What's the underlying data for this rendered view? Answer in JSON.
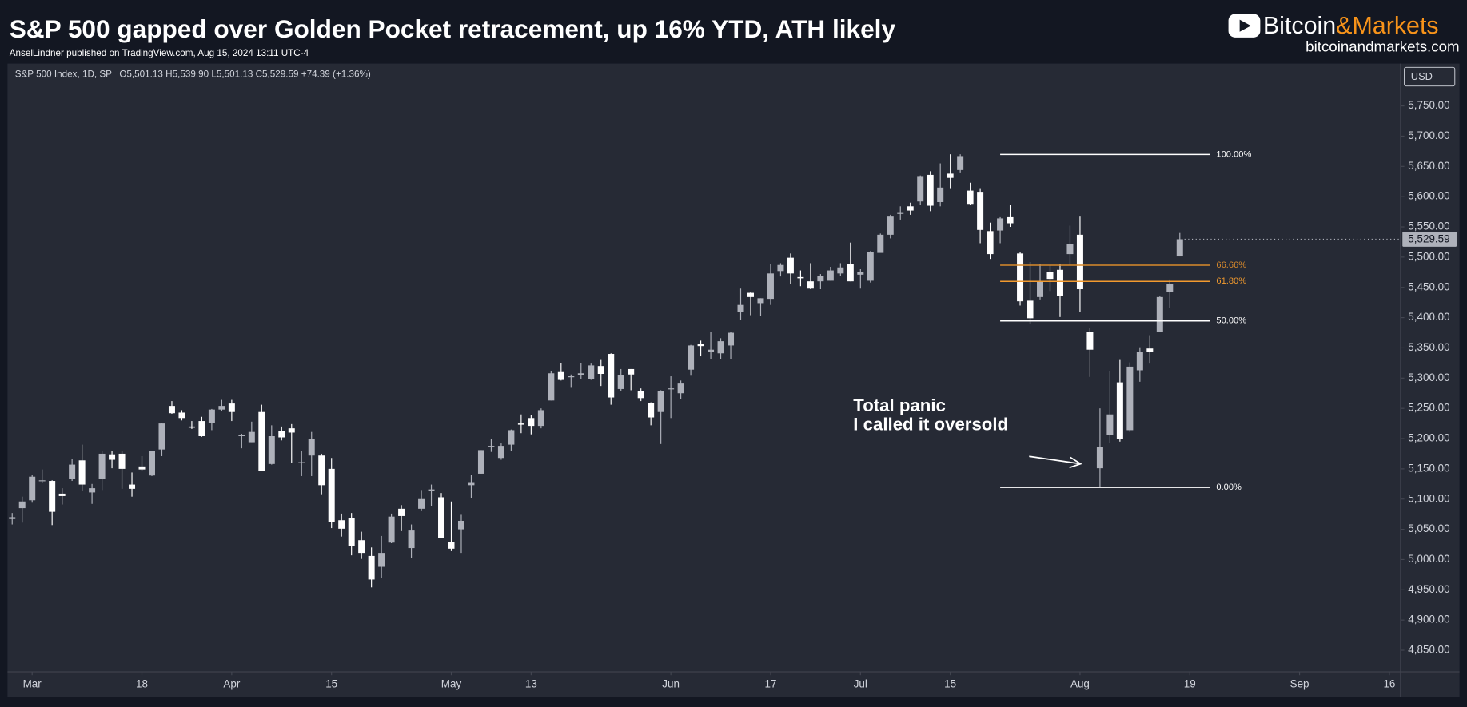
{
  "header": {
    "title": "S&P 500 gapped over Golden Pocket retracement, up 16% YTD, ATH likely",
    "subtitle": "AnselLindner published on TradingView.com, Aug 15, 2024 13:11 UTC-4",
    "logo": [
      "Bitcoin",
      "&Markets"
    ],
    "website": "bitcoinandmarkets.com"
  },
  "chart_data": {
    "type": "candlestick",
    "symbol": "S&P 500 Index, 1D, SP",
    "ohlc_legend": "O5,501.13 H5,539.90 L5,501.13 C5,529.59 +74.39 (+1.36%)",
    "currency": "USD",
    "up_color": "#aeb1ba",
    "down_color": "#ffffff",
    "candles": [
      [
        5067,
        5077,
        5058,
        5070
      ],
      [
        5085,
        5104,
        5061,
        5096
      ],
      [
        5098,
        5140,
        5094,
        5137
      ],
      [
        5131,
        5149,
        5127,
        5131
      ],
      [
        5130,
        5131,
        5057,
        5079
      ],
      [
        5109,
        5118,
        5091,
        5105
      ],
      [
        5133,
        5166,
        5130,
        5157
      ],
      [
        5164,
        5190,
        5114,
        5124
      ],
      [
        5111,
        5125,
        5092,
        5118
      ],
      [
        5134,
        5180,
        5115,
        5175
      ],
      [
        5174,
        5179,
        5151,
        5165
      ],
      [
        5175,
        5179,
        5117,
        5150
      ],
      [
        5124,
        5144,
        5104,
        5117
      ],
      [
        5154,
        5171,
        5146,
        5149
      ],
      [
        5139,
        5180,
        5138,
        5179
      ],
      [
        5182,
        5225,
        5171,
        5225
      ],
      [
        5254,
        5262,
        5241,
        5242
      ],
      [
        5243,
        5247,
        5230,
        5234
      ],
      [
        5220,
        5229,
        5216,
        5218
      ],
      [
        5229,
        5236,
        5203,
        5204
      ],
      [
        5226,
        5249,
        5214,
        5248
      ],
      [
        5248,
        5264,
        5246,
        5254
      ],
      [
        5258,
        5264,
        5229,
        5244
      ],
      [
        5204,
        5208,
        5184,
        5206
      ],
      [
        5194,
        5228,
        5194,
        5211
      ],
      [
        5244,
        5256,
        5146,
        5147
      ],
      [
        5158,
        5222,
        5157,
        5204
      ],
      [
        5212,
        5220,
        5197,
        5202
      ],
      [
        5217,
        5224,
        5160,
        5210
      ],
      [
        5160,
        5179,
        5138,
        5161
      ],
      [
        5172,
        5211,
        5138,
        5199
      ],
      [
        5172,
        5175,
        5108,
        5123
      ],
      [
        5150,
        5168,
        5052,
        5062
      ],
      [
        5065,
        5076,
        5038,
        5051
      ],
      [
        5068,
        5077,
        5007,
        5022
      ],
      [
        5032,
        5046,
        5001,
        5011
      ],
      [
        5006,
        5020,
        4954,
        4967
      ],
      [
        4988,
        5039,
        4970,
        5011
      ],
      [
        5028,
        5076,
        5027,
        5071
      ],
      [
        5084,
        5090,
        5047,
        5072
      ],
      [
        5019,
        5058,
        5002,
        5048
      ],
      [
        5084,
        5115,
        5080,
        5100
      ],
      [
        5114,
        5124,
        5088,
        5116
      ],
      [
        5103,
        5110,
        5035,
        5036
      ],
      [
        5029,
        5096,
        5014,
        5018
      ],
      [
        5050,
        5074,
        5011,
        5064
      ],
      [
        5123,
        5140,
        5102,
        5128
      ],
      [
        5142,
        5181,
        5142,
        5181
      ],
      [
        5187,
        5200,
        5178,
        5188
      ],
      [
        5168,
        5192,
        5165,
        5188
      ],
      [
        5190,
        5215,
        5180,
        5214
      ],
      [
        5225,
        5240,
        5209,
        5223
      ],
      [
        5234,
        5239,
        5207,
        5221
      ],
      [
        5221,
        5250,
        5217,
        5247
      ],
      [
        5263,
        5311,
        5263,
        5308
      ],
      [
        5310,
        5325,
        5296,
        5297
      ],
      [
        5303,
        5306,
        5284,
        5303
      ],
      [
        5305,
        5325,
        5299,
        5308
      ],
      [
        5298,
        5324,
        5297,
        5321
      ],
      [
        5320,
        5330,
        5287,
        5307
      ],
      [
        5340,
        5341,
        5256,
        5268
      ],
      [
        5282,
        5315,
        5278,
        5305
      ],
      [
        5315,
        5315,
        5280,
        5306
      ],
      [
        5278,
        5283,
        5262,
        5267
      ],
      [
        5259,
        5260,
        5222,
        5235
      ],
      [
        5244,
        5280,
        5191,
        5278
      ],
      [
        5283,
        5303,
        5234,
        5283
      ],
      [
        5275,
        5296,
        5265,
        5291
      ],
      [
        5314,
        5355,
        5304,
        5354
      ],
      [
        5357,
        5362,
        5336,
        5353
      ],
      [
        5343,
        5376,
        5332,
        5347
      ],
      [
        5341,
        5366,
        5331,
        5361
      ],
      [
        5354,
        5376,
        5331,
        5375
      ],
      [
        5410,
        5448,
        5396,
        5421
      ],
      [
        5441,
        5442,
        5404,
        5434
      ],
      [
        5424,
        5432,
        5403,
        5432
      ],
      [
        5431,
        5488,
        5421,
        5473
      ],
      [
        5477,
        5490,
        5468,
        5487
      ],
      [
        5499,
        5506,
        5455,
        5473
      ],
      [
        5467,
        5478,
        5452,
        5465
      ],
      [
        5460,
        5490,
        5447,
        5448
      ],
      [
        5460,
        5472,
        5447,
        5469
      ],
      [
        5461,
        5484,
        5461,
        5478
      ],
      [
        5473,
        5490,
        5469,
        5483
      ],
      [
        5488,
        5524,
        5460,
        5460
      ],
      [
        5471,
        5480,
        5448,
        5475
      ],
      [
        5461,
        5510,
        5458,
        5509
      ],
      [
        5507,
        5539,
        5508,
        5537
      ],
      [
        5537,
        5570,
        5531,
        5567
      ],
      [
        5572,
        5584,
        5562,
        5573
      ],
      [
        5584,
        5590,
        5570,
        5577
      ],
      [
        5592,
        5635,
        5587,
        5634
      ],
      [
        5636,
        5642,
        5576,
        5585
      ],
      [
        5591,
        5655,
        5584,
        5615
      ],
      [
        5638,
        5670,
        5614,
        5631
      ],
      [
        5644,
        5670,
        5640,
        5667
      ],
      [
        5610,
        5623,
        5586,
        5588
      ],
      [
        5608,
        5614,
        5523,
        5545
      ],
      [
        5543,
        5557,
        5497,
        5505
      ],
      [
        5544,
        5566,
        5523,
        5564
      ],
      [
        5566,
        5586,
        5550,
        5556
      ],
      [
        5506,
        5508,
        5420,
        5427
      ],
      [
        5428,
        5492,
        5390,
        5399
      ],
      [
        5434,
        5488,
        5430,
        5459
      ],
      [
        5476,
        5487,
        5444,
        5464
      ],
      [
        5479,
        5489,
        5401,
        5436
      ],
      [
        5505,
        5552,
        5486,
        5522
      ],
      [
        5537,
        5567,
        5410,
        5447
      ],
      [
        5377,
        5383,
        5302,
        5347
      ],
      [
        5151,
        5250,
        5120,
        5186
      ],
      [
        5206,
        5312,
        5193,
        5240
      ],
      [
        5293,
        5330,
        5195,
        5200
      ],
      [
        5214,
        5326,
        5211,
        5319
      ],
      [
        5313,
        5351,
        5294,
        5344
      ],
      [
        5349,
        5371,
        5324,
        5344
      ],
      [
        5376,
        5435,
        5376,
        5434
      ],
      [
        5443,
        5463,
        5416,
        5455
      ],
      [
        5501.13,
        5539.9,
        5501.13,
        5529.59
      ]
    ],
    "last_price_label": "5,529.59",
    "xlim": [
      -0.47,
      139.12
    ],
    "xticks": [
      {
        "value": 2,
        "label": "Mar"
      },
      {
        "value": 13,
        "label": "18"
      },
      {
        "value": 22,
        "label": "Apr"
      },
      {
        "value": 32,
        "label": "15"
      },
      {
        "value": 44,
        "label": "May"
      },
      {
        "value": 52,
        "label": "13"
      },
      {
        "value": 66,
        "label": "Jun"
      },
      {
        "value": 76,
        "label": "17"
      },
      {
        "value": 85,
        "label": "Jul"
      },
      {
        "value": 94,
        "label": "15"
      },
      {
        "value": 107,
        "label": "Aug"
      },
      {
        "value": 118,
        "label": "19"
      },
      {
        "value": 129,
        "label": "Sep"
      },
      {
        "value": 138,
        "label": "16"
      }
    ],
    "ylim": [
      4815,
      5820
    ],
    "yticks": [
      {
        "value": 4850,
        "label": "4,850.00"
      },
      {
        "value": 4900,
        "label": "4,900.00"
      },
      {
        "value": 4950,
        "label": "4,950.00"
      },
      {
        "value": 5000,
        "label": "5,000.00"
      },
      {
        "value": 5050,
        "label": "5,050.00"
      },
      {
        "value": 5100,
        "label": "5,100.00"
      },
      {
        "value": 5150,
        "label": "5,150.00"
      },
      {
        "value": 5200,
        "label": "5,200.00"
      },
      {
        "value": 5250,
        "label": "5,250.00"
      },
      {
        "value": 5300,
        "label": "5,300.00"
      },
      {
        "value": 5350,
        "label": "5,350.00"
      },
      {
        "value": 5400,
        "label": "5,400.00"
      },
      {
        "value": 5450,
        "label": "5,450.00"
      },
      {
        "value": 5500,
        "label": "5,500.00"
      },
      {
        "value": 5550,
        "label": "5,550.00"
      },
      {
        "value": 5600,
        "label": "5,600.00"
      },
      {
        "value": 5650,
        "label": "5,650.00"
      },
      {
        "value": 5700,
        "label": "5,700.00"
      },
      {
        "value": 5750,
        "label": "5,750.00"
      }
    ],
    "fib": {
      "x_range": [
        99,
        120
      ],
      "levels": [
        {
          "value": 5669.67,
          "label": "100.00%",
          "color": "#ffffff"
        },
        {
          "value": 5486.6,
          "label": "66.66%",
          "color": "#d98a2b"
        },
        {
          "value": 5459.9,
          "label": "61.80%",
          "color": "#f29a2e"
        },
        {
          "value": 5394.6,
          "label": "50.00%",
          "color": "#ffffff"
        },
        {
          "value": 5119.26,
          "label": "0.00%",
          "color": "#ffffff"
        }
      ]
    },
    "annotation": [
      "Total panic",
      "I called it oversold"
    ]
  }
}
